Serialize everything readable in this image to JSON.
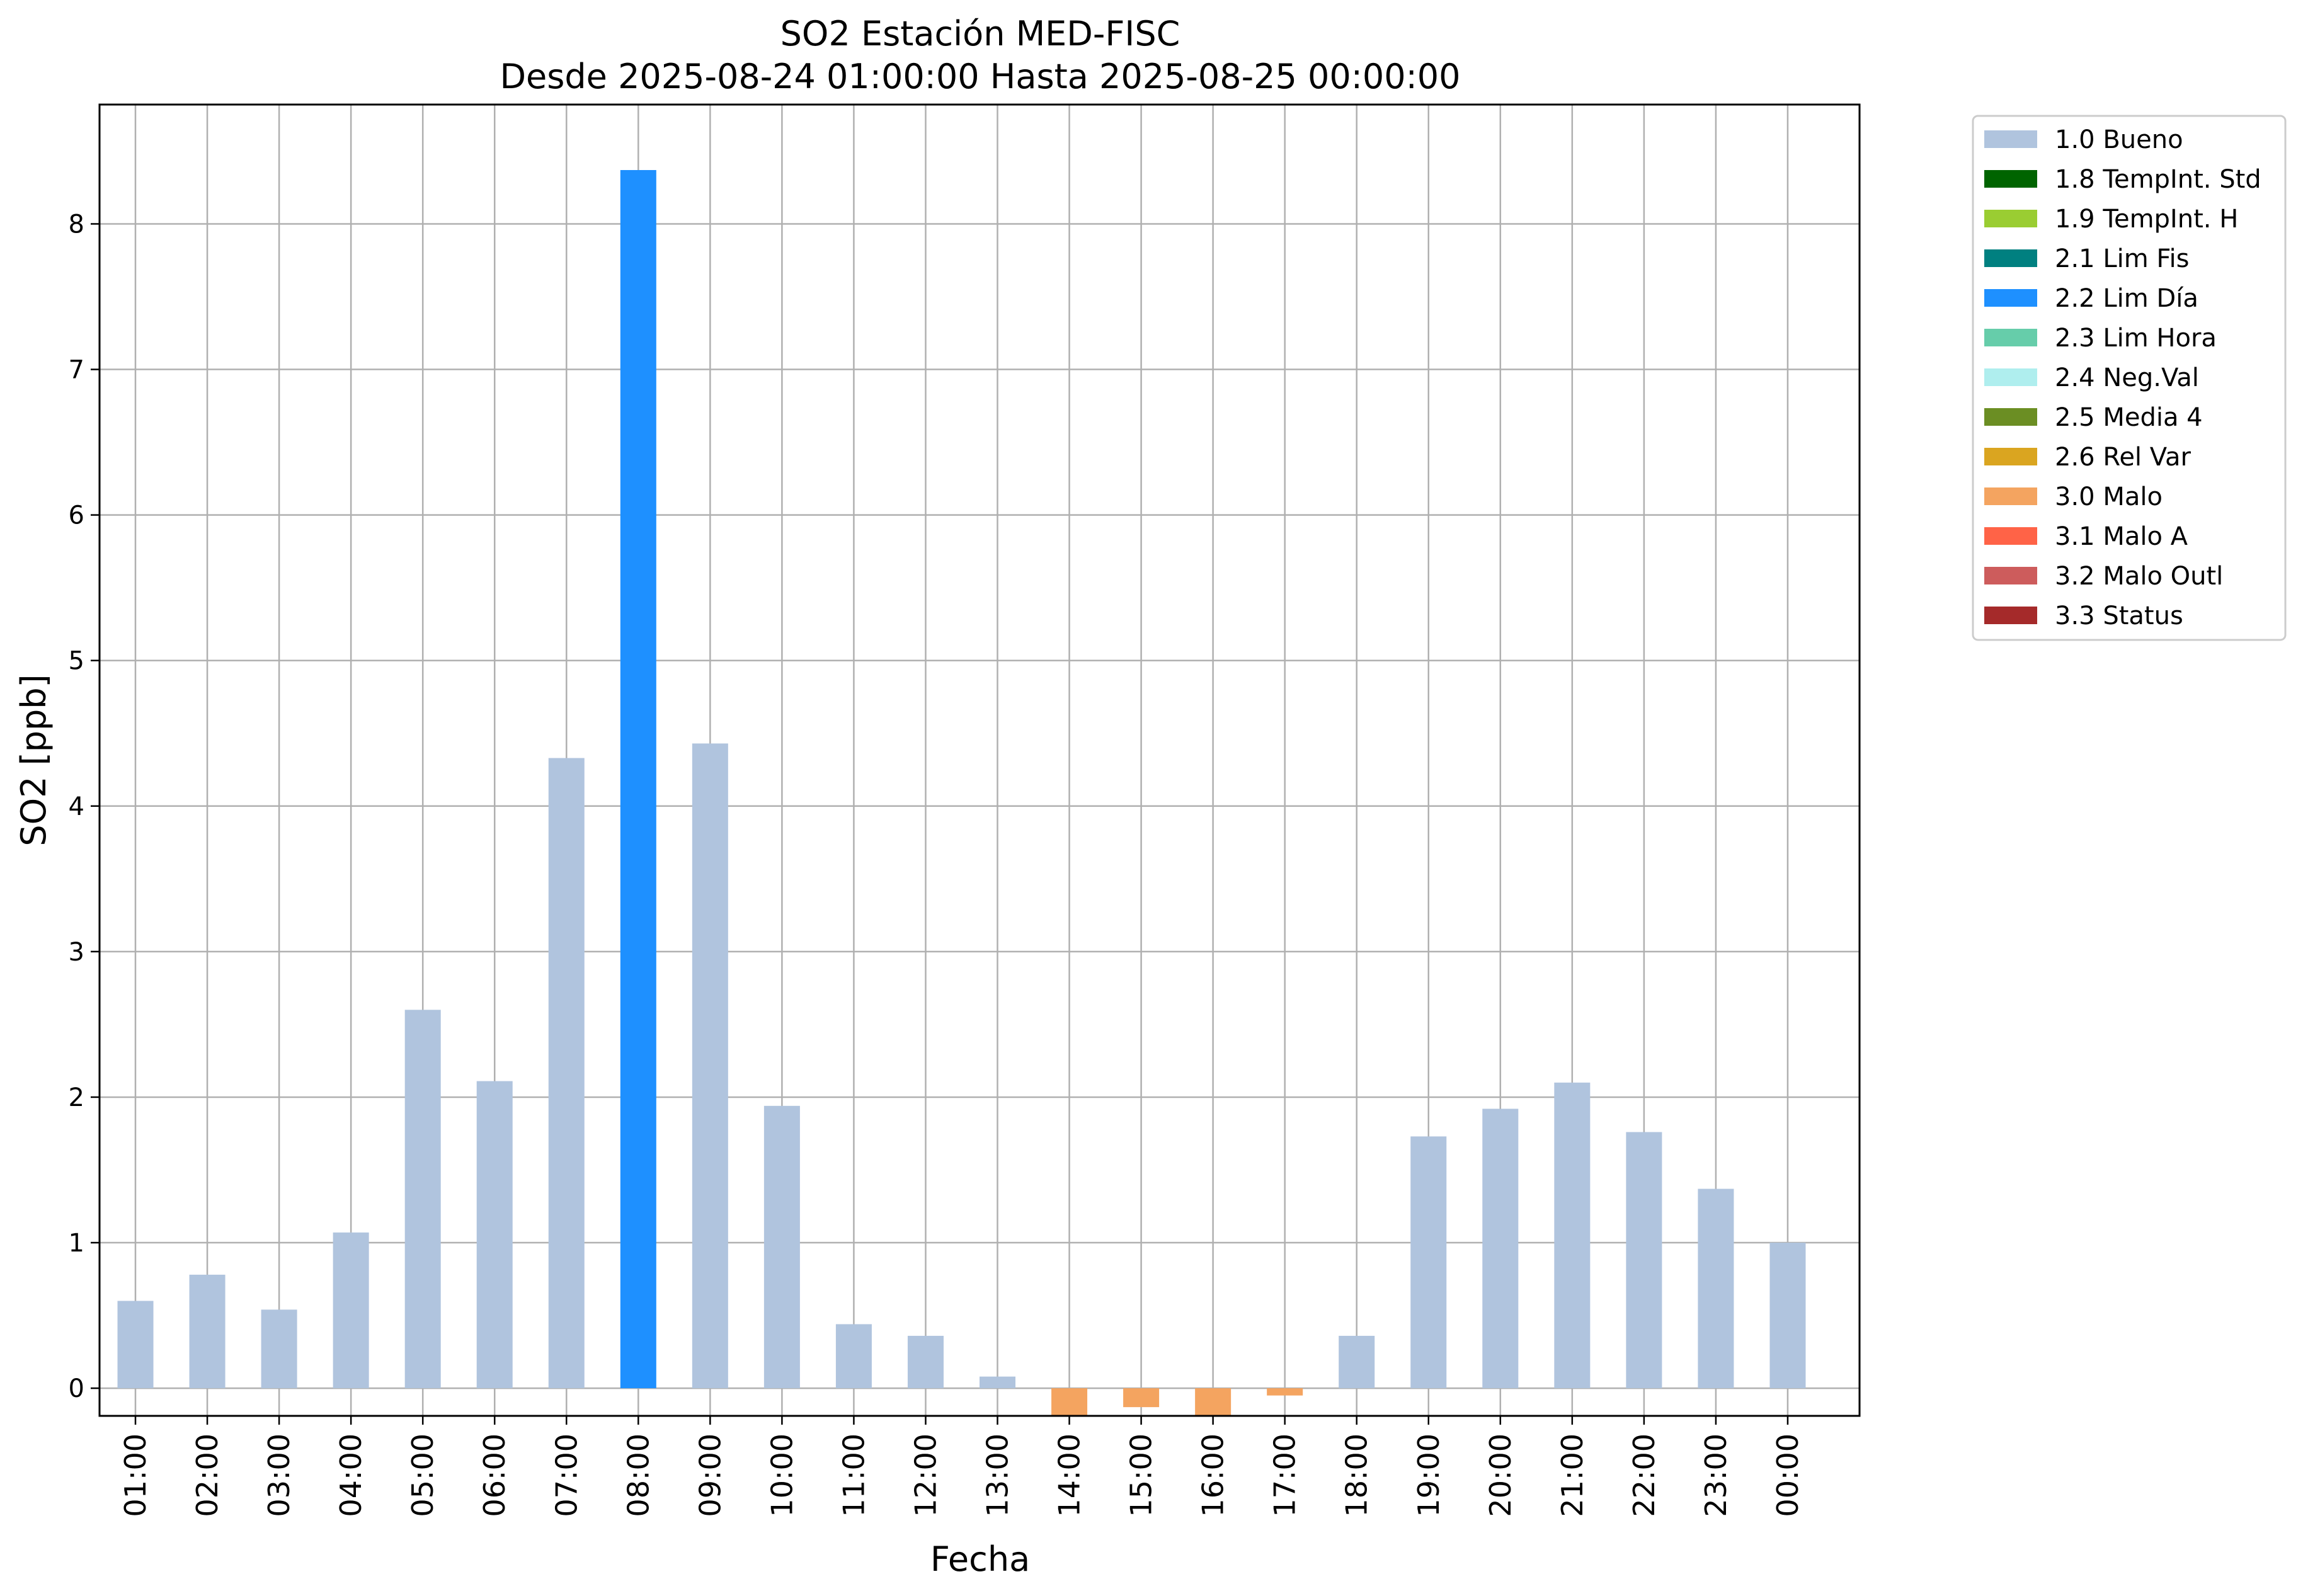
{
  "chart_data": {
    "type": "bar",
    "title": "SO2 Estación MED-FISC",
    "subtitle": "Desde 2025-08-24 01:00:00 Hasta 2025-08-25 00:00:00",
    "xlabel": "Fecha",
    "ylabel": "SO2 [ppb]",
    "ylim": [
      -0.19,
      8.82
    ],
    "yticks": [
      "0",
      "1",
      "2",
      "3",
      "4",
      "5",
      "6",
      "7",
      "8"
    ],
    "grid": true,
    "legend_position": "outside-top-right",
    "categories": [
      "01:00",
      "02:00",
      "03:00",
      "04:00",
      "05:00",
      "06:00",
      "07:00",
      "08:00",
      "09:00",
      "10:00",
      "11:00",
      "12:00",
      "13:00",
      "14:00",
      "15:00",
      "16:00",
      "17:00",
      "18:00",
      "19:00",
      "20:00",
      "21:00",
      "22:00",
      "23:00",
      "00:00"
    ],
    "values": [
      0.6,
      0.78,
      0.54,
      1.07,
      2.6,
      2.11,
      4.33,
      8.37,
      4.43,
      1.94,
      0.44,
      0.36,
      0.08,
      -0.19,
      -0.13,
      -0.19,
      -0.05,
      0.36,
      1.73,
      1.92,
      2.1,
      1.76,
      1.37,
      1.0
    ],
    "flags": [
      "1.0 Bueno",
      "1.0 Bueno",
      "1.0 Bueno",
      "1.0 Bueno",
      "1.0 Bueno",
      "1.0 Bueno",
      "1.0 Bueno",
      "2.2 Lim Día",
      "1.0 Bueno",
      "1.0 Bueno",
      "1.0 Bueno",
      "1.0 Bueno",
      "1.0 Bueno",
      "3.0 Malo",
      "3.0 Malo",
      "3.0 Malo",
      "3.0 Malo",
      "1.0 Bueno",
      "1.0 Bueno",
      "1.0 Bueno",
      "1.0 Bueno",
      "1.0 Bueno",
      "1.0 Bueno",
      "1.0 Bueno"
    ],
    "legend": [
      {
        "label": "1.0 Bueno",
        "color": "#b0c4de"
      },
      {
        "label": "1.8 TempInt. Std",
        "color": "#006400"
      },
      {
        "label": "1.9 TempInt. H",
        "color": "#9acd32"
      },
      {
        "label": "2.1 Lim Fis",
        "color": "#008080"
      },
      {
        "label": "2.2 Lim Día",
        "color": "#1e90ff"
      },
      {
        "label": "2.3 Lim Hora",
        "color": "#66cdaa"
      },
      {
        "label": "2.4 Neg.Val",
        "color": "#afeeee"
      },
      {
        "label": "2.5 Media 4",
        "color": "#6b8e23"
      },
      {
        "label": "2.6 Rel Var",
        "color": "#daa520"
      },
      {
        "label": "3.0 Malo",
        "color": "#f4a460"
      },
      {
        "label": "3.1 Malo A",
        "color": "#ff6347"
      },
      {
        "label": "3.2 Malo Outl",
        "color": "#cd5c5c"
      },
      {
        "label": "3.3 Status",
        "color": "#a52a2a"
      }
    ]
  }
}
